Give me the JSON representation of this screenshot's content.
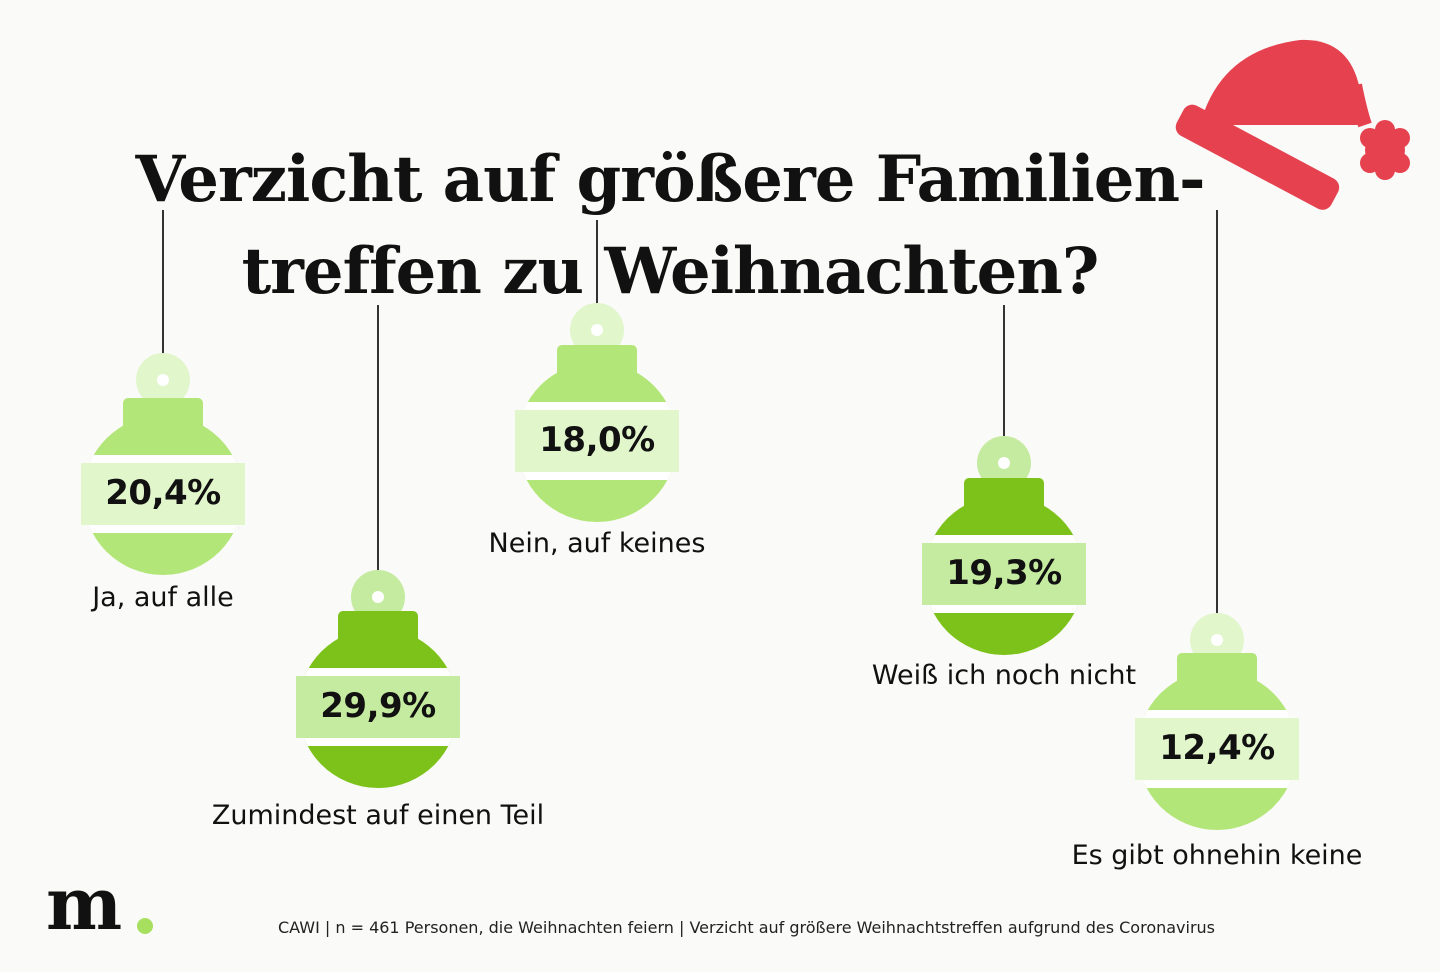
{
  "title_lines": [
    "Verzicht auf größere Familien-",
    "treffen zu Weihnachten?"
  ],
  "footer": "CAWI | n = 461 Personen, die Weihnachten feiern | Verzicht auf größere Weihnachtstreffen aufgrund des Coronavirus",
  "logo": "m.",
  "colors": {
    "light_ball": "#b3e679",
    "light_band": "#e2f6cc",
    "dark_ball": "#7cc21a",
    "dark_band": "#c5eba0",
    "hat": "#e5414f",
    "logo_dot": "#a7e05f"
  },
  "chart_data": {
    "type": "bar",
    "title": "Verzicht auf größere Familientreffen zu Weihnachten?",
    "categories": [
      "Ja, auf alle",
      "Zumindest auf einen Teil",
      "Nein, auf keines",
      "Weiß ich noch nicht",
      "Es gibt ohnehin keine"
    ],
    "values": [
      20.4,
      29.9,
      18.0,
      19.3,
      12.4
    ],
    "value_labels": [
      "20,4%",
      "29,9%",
      "18,0%",
      "19,3%",
      "12,4%"
    ],
    "unit": "%"
  }
}
